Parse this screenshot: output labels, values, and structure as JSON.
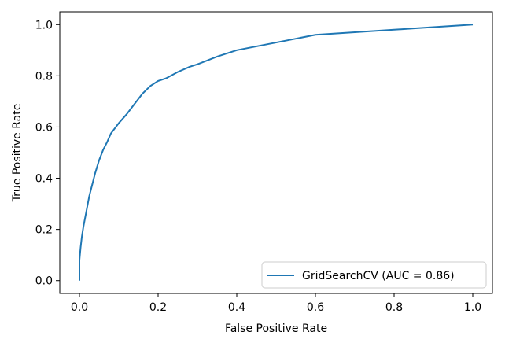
{
  "chart_data": {
    "type": "line",
    "title": "",
    "xlabel": "False Positive Rate",
    "ylabel": "True Positive Rate",
    "xlim": [
      -0.05,
      1.05
    ],
    "ylim": [
      -0.05,
      1.05
    ],
    "xticks": [
      0.0,
      0.2,
      0.4,
      0.6,
      0.8,
      1.0
    ],
    "yticks": [
      0.0,
      0.2,
      0.4,
      0.6,
      0.8,
      1.0
    ],
    "xtick_labels": [
      "0.0",
      "0.2",
      "0.4",
      "0.6",
      "0.8",
      "1.0"
    ],
    "ytick_labels": [
      "0.0",
      "0.2",
      "0.4",
      "0.6",
      "0.8",
      "1.0"
    ],
    "grid": false,
    "legend_position": "lower-right",
    "series": [
      {
        "name": "GridSearchCV (AUC = 0.86)",
        "color": "#1f77b4",
        "x": [
          0.0,
          0.0,
          0.003,
          0.006,
          0.01,
          0.015,
          0.02,
          0.025,
          0.03,
          0.04,
          0.05,
          0.06,
          0.07,
          0.08,
          0.1,
          0.12,
          0.14,
          0.16,
          0.18,
          0.2,
          0.22,
          0.25,
          0.28,
          0.3,
          0.35,
          0.4,
          0.45,
          0.5,
          0.55,
          0.6,
          0.65,
          0.7,
          0.75,
          0.8,
          0.85,
          0.9,
          0.95,
          1.0
        ],
        "y": [
          0.0,
          0.08,
          0.13,
          0.17,
          0.21,
          0.25,
          0.29,
          0.33,
          0.36,
          0.42,
          0.47,
          0.51,
          0.54,
          0.575,
          0.615,
          0.65,
          0.69,
          0.73,
          0.76,
          0.78,
          0.79,
          0.815,
          0.835,
          0.845,
          0.875,
          0.9,
          0.915,
          0.93,
          0.945,
          0.96,
          0.965,
          0.97,
          0.975,
          0.98,
          0.985,
          0.99,
          0.995,
          1.0
        ]
      }
    ]
  }
}
